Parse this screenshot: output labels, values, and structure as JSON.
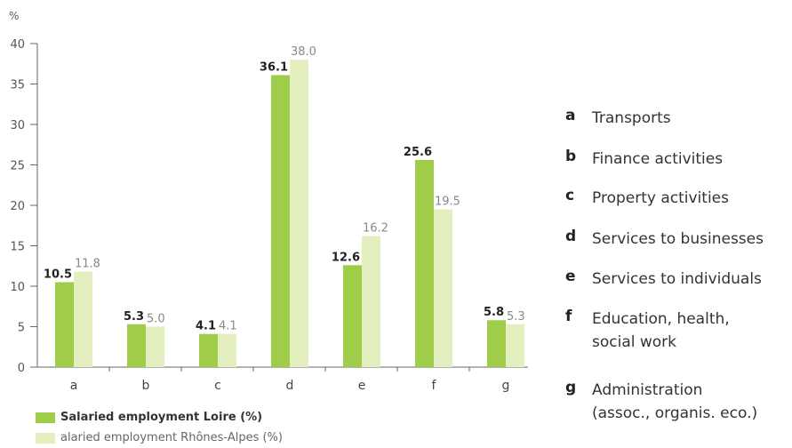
{
  "chart_data": {
    "type": "bar",
    "unit_label": "%",
    "categories": [
      "a",
      "b",
      "c",
      "d",
      "e",
      "f",
      "g"
    ],
    "series": [
      {
        "name": "Salaried employment Loire (%)",
        "values": [
          10.5,
          5.3,
          4.1,
          36.1,
          12.6,
          25.6,
          5.8
        ],
        "color": "#9fcd4a"
      },
      {
        "name": "alaried employment Rhônes-Alpes (%)",
        "values": [
          11.8,
          5.0,
          4.1,
          38.0,
          16.2,
          19.5,
          5.3
        ],
        "color": "#e3efbf"
      }
    ],
    "value_labels": {
      "loire": [
        "10.5",
        "5.3",
        "4.1",
        "36.1",
        "12.6",
        "25.6",
        "5.8"
      ],
      "rhone_alpes": [
        "11.8",
        "5.0",
        "4.1",
        "38.0",
        "16.2",
        "19.5",
        "5.3"
      ]
    },
    "ylim": [
      0,
      40
    ],
    "yticks": [
      0,
      5,
      10,
      15,
      20,
      25,
      30,
      35,
      40
    ],
    "grid": false,
    "legend_placement": "bottom-left"
  },
  "legend": {
    "loire": "Salaried employment Loire (%)",
    "rhone_alpes": "alaried employment Rhônes-Alpes (%)"
  },
  "key": [
    {
      "letter": "a",
      "text": "Transports"
    },
    {
      "letter": "b",
      "text": "Finance activities"
    },
    {
      "letter": "c",
      "text": "Property activities"
    },
    {
      "letter": "d",
      "text": "Services to businesses"
    },
    {
      "letter": "e",
      "text": "Services to individuals"
    },
    {
      "letter": "f",
      "text": "Education, health,",
      "text2": "social work"
    },
    {
      "letter": "g",
      "text": "Administration",
      "text2": "(assoc., organis. eco.)"
    }
  ]
}
